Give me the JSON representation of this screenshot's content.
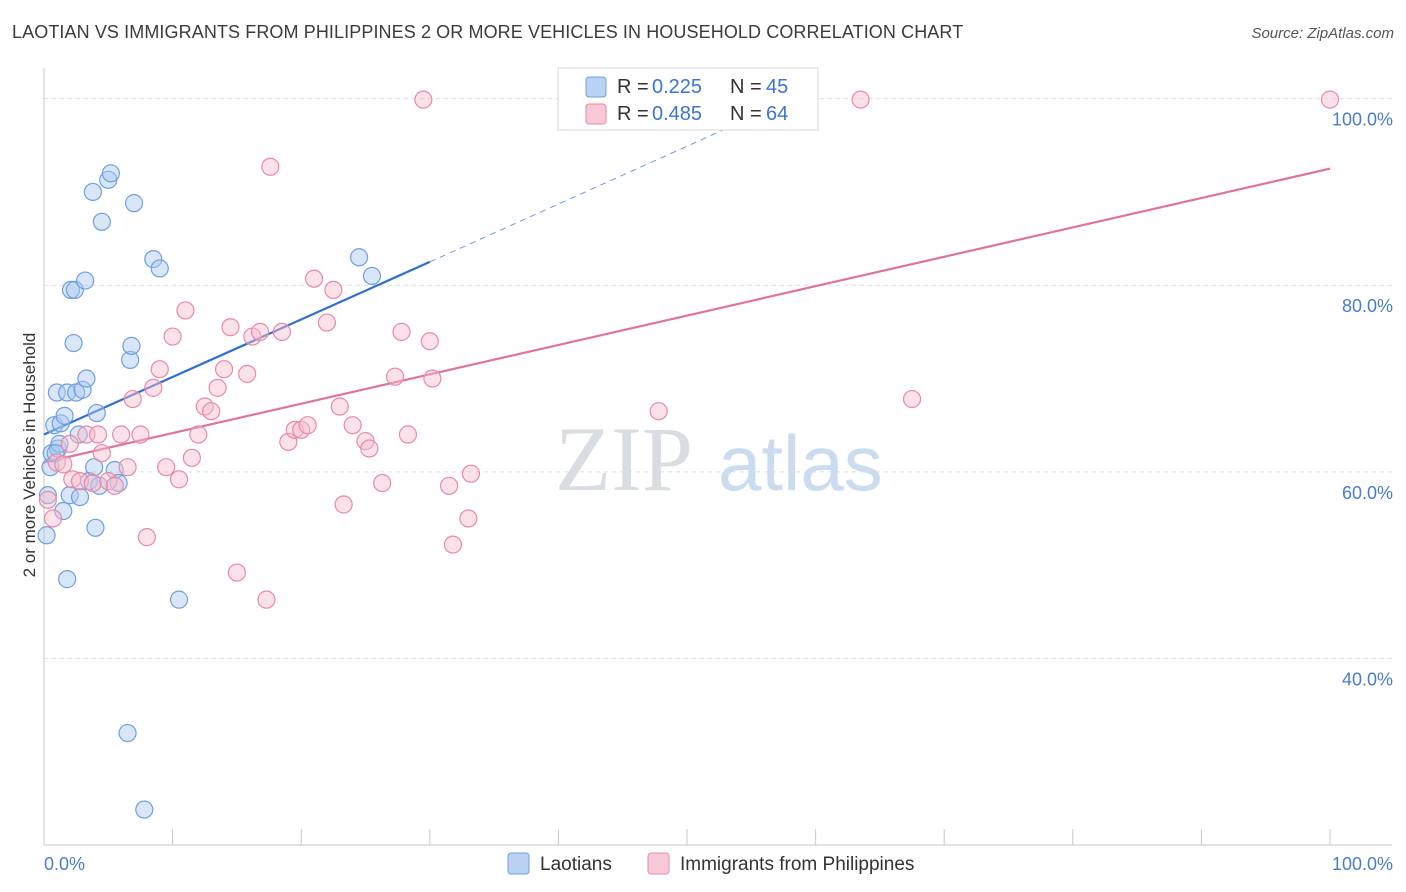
{
  "header": {
    "title": "LAOTIAN VS IMMIGRANTS FROM PHILIPPINES 2 OR MORE VEHICLES IN HOUSEHOLD CORRELATION CHART",
    "source": "Source: ZipAtlas.com"
  },
  "watermark": {
    "zip": "ZIP",
    "atlas": "atlas"
  },
  "legend": {
    "r_label": "R =",
    "n_label": "N =",
    "series": [
      {
        "name": "Laotians",
        "r": "0.225",
        "n": "45",
        "fill": "#a9c8f0",
        "stroke": "#6f9fe0"
      },
      {
        "name": "Immigrants from Philippines",
        "r": "0.485",
        "n": "64",
        "fill": "#f7bccd",
        "stroke": "#e88aa7"
      }
    ]
  },
  "chart_data": {
    "type": "scatter",
    "title": "LAOTIAN VS IMMIGRANTS FROM PHILIPPINES 2 OR MORE VEHICLES IN HOUSEHOLD CORRELATION CHART",
    "xlabel": "",
    "ylabel": "2 or more Vehicles in Household",
    "xlim": [
      0,
      100
    ],
    "ylim": [
      20,
      102
    ],
    "x_tick_labels": [
      "0.0%",
      "100.0%"
    ],
    "y_ticks": [
      40,
      60,
      80,
      100
    ],
    "y_tick_labels": [
      "40.0%",
      "60.0%",
      "80.0%",
      "100.0%"
    ],
    "grid": true,
    "series": [
      {
        "name": "Laotians",
        "color": "#6f9fe0",
        "line_color": "#2f6fd0",
        "trend": {
          "x0": 0,
          "y0": 64.0,
          "x1": 30,
          "y1": 82.5,
          "dash_to_x": 55,
          "dash_to_y": 98.0
        },
        "points": [
          [
            0.2,
            53.2
          ],
          [
            0.3,
            57.5
          ],
          [
            0.5,
            60.5
          ],
          [
            0.6,
            62.0
          ],
          [
            0.8,
            65.0
          ],
          [
            1.0,
            68.5
          ],
          [
            1.1,
            62.5
          ],
          [
            1.2,
            63.0
          ],
          [
            1.3,
            65.2
          ],
          [
            1.5,
            55.8
          ],
          [
            1.6,
            66.0
          ],
          [
            1.8,
            48.5
          ],
          [
            1.8,
            68.5
          ],
          [
            2.0,
            57.5
          ],
          [
            2.1,
            79.5
          ],
          [
            2.3,
            73.8
          ],
          [
            2.4,
            79.5
          ],
          [
            2.5,
            68.5
          ],
          [
            2.7,
            64.0
          ],
          [
            2.8,
            57.3
          ],
          [
            3.0,
            68.8
          ],
          [
            3.2,
            80.5
          ],
          [
            3.3,
            70.0
          ],
          [
            3.5,
            59.0
          ],
          [
            3.8,
            90.0
          ],
          [
            3.9,
            60.5
          ],
          [
            4.0,
            54.0
          ],
          [
            4.1,
            66.3
          ],
          [
            4.3,
            58.5
          ],
          [
            4.5,
            86.8
          ],
          [
            5.0,
            91.3
          ],
          [
            5.2,
            92.0
          ],
          [
            5.5,
            60.2
          ],
          [
            5.8,
            58.8
          ],
          [
            6.5,
            32.0
          ],
          [
            6.7,
            72.0
          ],
          [
            6.8,
            73.5
          ],
          [
            7.0,
            88.8
          ],
          [
            7.8,
            23.8
          ],
          [
            8.5,
            82.8
          ],
          [
            9.0,
            81.8
          ],
          [
            10.5,
            46.3
          ],
          [
            24.5,
            83.0
          ],
          [
            25.5,
            81.0
          ],
          [
            0.9,
            62.0
          ]
        ]
      },
      {
        "name": "Immigrants from Philippines",
        "color": "#e88aa7",
        "line_color": "#e0739a",
        "trend": {
          "x0": 0,
          "y0": 61.0,
          "x1": 100,
          "y1": 92.5
        },
        "points": [
          [
            0.3,
            57.0
          ],
          [
            0.7,
            55.0
          ],
          [
            1.0,
            61.0
          ],
          [
            1.5,
            60.8
          ],
          [
            2.0,
            63.0
          ],
          [
            2.2,
            59.2
          ],
          [
            2.8,
            59.0
          ],
          [
            3.3,
            64.0
          ],
          [
            3.8,
            58.8
          ],
          [
            4.2,
            64.0
          ],
          [
            4.5,
            62.0
          ],
          [
            5.0,
            59.0
          ],
          [
            5.5,
            58.5
          ],
          [
            6.0,
            64.0
          ],
          [
            6.5,
            60.5
          ],
          [
            6.9,
            67.8
          ],
          [
            7.5,
            64.0
          ],
          [
            8.0,
            53.0
          ],
          [
            8.5,
            69.0
          ],
          [
            9.0,
            71.0
          ],
          [
            9.5,
            60.5
          ],
          [
            10.0,
            74.5
          ],
          [
            10.5,
            59.2
          ],
          [
            11.0,
            77.3
          ],
          [
            11.5,
            61.5
          ],
          [
            12.0,
            64.0
          ],
          [
            12.5,
            67.0
          ],
          [
            13.0,
            66.5
          ],
          [
            13.5,
            69.0
          ],
          [
            14.0,
            71.0
          ],
          [
            14.5,
            75.5
          ],
          [
            15.0,
            49.2
          ],
          [
            15.8,
            70.5
          ],
          [
            16.2,
            74.5
          ],
          [
            16.8,
            75.0
          ],
          [
            17.3,
            46.3
          ],
          [
            17.6,
            92.7
          ],
          [
            18.5,
            75.0
          ],
          [
            19.0,
            63.2
          ],
          [
            19.5,
            64.5
          ],
          [
            20.0,
            64.5
          ],
          [
            20.5,
            65.0
          ],
          [
            21.0,
            80.7
          ],
          [
            22.0,
            76.0
          ],
          [
            22.5,
            79.5
          ],
          [
            23.0,
            67.0
          ],
          [
            23.3,
            56.5
          ],
          [
            24.0,
            65.0
          ],
          [
            25.0,
            63.3
          ],
          [
            25.3,
            62.5
          ],
          [
            26.3,
            58.8
          ],
          [
            27.3,
            70.2
          ],
          [
            27.8,
            75.0
          ],
          [
            28.3,
            64.0
          ],
          [
            29.5,
            99.9
          ],
          [
            30.0,
            74.0
          ],
          [
            30.2,
            70.0
          ],
          [
            31.5,
            58.5
          ],
          [
            31.8,
            52.2
          ],
          [
            33.0,
            55.0
          ],
          [
            33.2,
            59.8
          ],
          [
            47.8,
            66.5
          ],
          [
            63.5,
            99.9
          ],
          [
            67.5,
            67.8
          ],
          [
            100.0,
            99.9
          ]
        ]
      }
    ]
  }
}
